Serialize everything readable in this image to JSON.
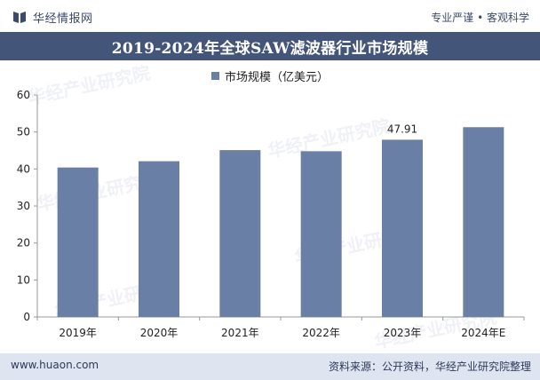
{
  "header": {
    "brand": "华经情报网",
    "tagline": "专业严谨 • 客观科学"
  },
  "footer": {
    "site": "www.huaon.com",
    "source": "资料来源：公开资料，华经产业研究院整理"
  },
  "colors": {
    "bar": "#6a7fa6",
    "title_bg": "#44557a",
    "footer_bg": "#dfe5f0"
  },
  "icons": {
    "logo": "book-icon"
  },
  "chart_data": {
    "type": "bar",
    "title": "2019-2024年全球SAW滤波器行业市场规模",
    "categories": [
      "2019年",
      "2020年",
      "2021年",
      "2022年",
      "2023年",
      "2024年E"
    ],
    "series": [
      {
        "name": "市场规模（亿美元）",
        "values": [
          40.4,
          42.1,
          45.1,
          44.8,
          47.91,
          51.3
        ]
      }
    ],
    "data_labels": [
      null,
      null,
      null,
      null,
      "47.91",
      null
    ],
    "ylim": [
      0,
      60
    ],
    "yticks": [
      0,
      10,
      20,
      30,
      40,
      50,
      60
    ],
    "legend_position": "top-center",
    "grid": false
  }
}
